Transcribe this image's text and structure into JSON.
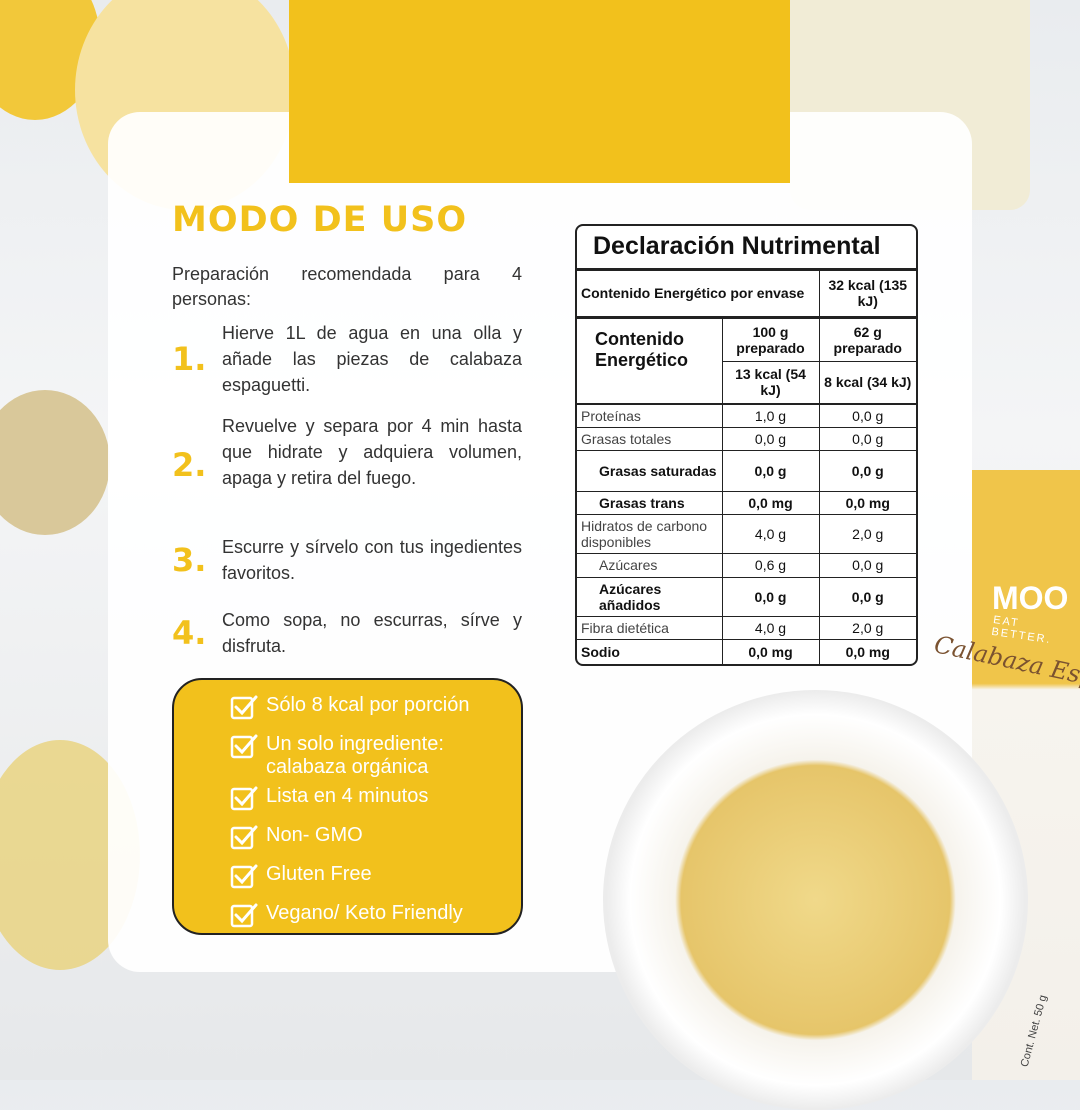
{
  "header": {
    "title": "MODO DE USO"
  },
  "intro": "Preparación recomendada para 4 personas:",
  "steps": [
    {
      "num": "1.",
      "text": "Hierve 1L de agua  en una olla y añade las piezas de calabaza espaguetti."
    },
    {
      "num": "2.",
      "text": "Revuelve y separa por 4 min hasta que hidrate y adquiera volumen, apaga y retira del fuego."
    },
    {
      "num": "3.",
      "text": "Escurre y sírvelo con tus ingedientes favoritos."
    },
    {
      "num": "4.",
      "text": "Como sopa, no escurras, sírve y disfruta."
    }
  ],
  "benefits": [
    "Sólo 8 kcal por porción",
    "Un solo ingrediente: calabaza orgánica",
    "Lista en 4 minutos",
    "Non- GMO",
    "Gluten Free",
    "Vegano/ Keto Friendly"
  ],
  "nutrition": {
    "title": "Declaración Nutrimental",
    "per_package_label": "Contenido Energético por envase",
    "per_package_value": "32 kcal (135 kJ)",
    "energy_label": "Contenido Energético",
    "col1_header": "100 g preparado",
    "col2_header": "62 g preparado",
    "col1_energy": "13 kcal (54 kJ)",
    "col2_energy": "8 kcal (34 kJ)",
    "rows": [
      {
        "label": "Proteínas",
        "v1": "1,0 g",
        "v2": "0,0 g"
      },
      {
        "label": "Grasas totales",
        "v1": "0,0 g",
        "v2": "0,0 g"
      },
      {
        "label": "Grasas saturadas",
        "v1": "0,0 g",
        "v2": "0,0 g"
      },
      {
        "label": "Grasas trans",
        "v1": "0,0 mg",
        "v2": "0,0 mg"
      },
      {
        "label": "Hidratos de carbono disponibles",
        "v1": "4,0 g",
        "v2": "2,0 g"
      },
      {
        "label": "Azúcares",
        "v1": "0,6 g",
        "v2": "0,0 g"
      },
      {
        "label": "Azúcares añadidos",
        "v1": "0,0 g",
        "v2": "0,0 g"
      },
      {
        "label": "Fibra dietética",
        "v1": "4,0 g",
        "v2": "2,0 g"
      },
      {
        "label": "Sodio",
        "v1": "0,0 mg",
        "v2": "0,0 mg"
      }
    ]
  },
  "package": {
    "brand": "MOO",
    "tagline": "EAT BETTER.",
    "name": "Calabaza Espagueti",
    "net": "Cont. Net. 50 g"
  },
  "colors": {
    "accent": "#F2C11C",
    "text": "#333333"
  }
}
